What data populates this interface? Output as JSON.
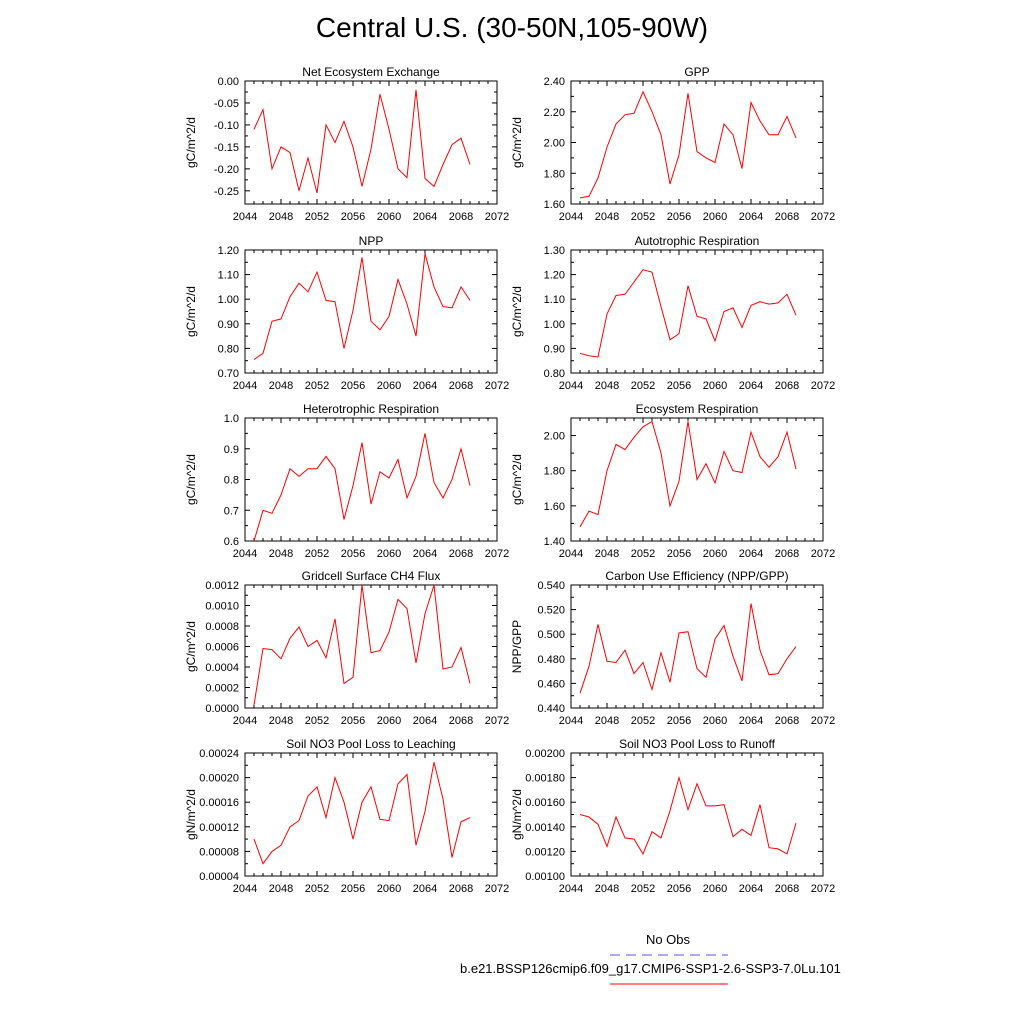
{
  "title": "Central U.S. (30-50N,105-90W)",
  "legend": {
    "obs_label": "No Obs",
    "obs_color": "#5555dd",
    "run_label": "b.e21.BSSP126cmip6.f09_g17.CMIP6-SSP1-2.6-SSP3-7.0Lu.101",
    "run_color": "#ff0000"
  },
  "chart_data": [
    {
      "type": "line",
      "title": "Net Ecosystem Exchange",
      "ylabel": "gC/m^2/d",
      "xlim": [
        2044,
        2072
      ],
      "xticks": [
        "2044",
        "2048",
        "2052",
        "2056",
        "2060",
        "2064",
        "2068",
        "2072"
      ],
      "ylim": [
        -0.28,
        0.0
      ],
      "yticks": [
        "-0.25",
        "-0.20",
        "-0.15",
        "-0.10",
        "-0.05",
        "0.00"
      ],
      "ytick_values": [
        -0.25,
        -0.2,
        -0.15,
        -0.1,
        -0.05,
        0.0
      ],
      "x": [
        2045,
        2046,
        2047,
        2048,
        2049,
        2050,
        2051,
        2052,
        2053,
        2054,
        2055,
        2056,
        2057,
        2058,
        2059,
        2060,
        2061,
        2062,
        2063,
        2064,
        2065,
        2066,
        2067,
        2068,
        2069
      ],
      "values": [
        -0.11,
        -0.065,
        -0.2,
        -0.15,
        -0.163,
        -0.25,
        -0.175,
        -0.255,
        -0.1,
        -0.14,
        -0.092,
        -0.15,
        -0.24,
        -0.155,
        -0.03,
        -0.11,
        -0.2,
        -0.22,
        -0.02,
        -0.222,
        -0.24,
        -0.19,
        -0.145,
        -0.13,
        -0.19
      ]
    },
    {
      "type": "line",
      "title": "GPP",
      "ylabel": "gC/m^2/d",
      "xlim": [
        2044,
        2072
      ],
      "xticks": [
        "2044",
        "2048",
        "2052",
        "2056",
        "2060",
        "2064",
        "2068",
        "2072"
      ],
      "ylim": [
        1.6,
        2.4
      ],
      "yticks": [
        "1.60",
        "1.80",
        "2.00",
        "2.20",
        "2.40"
      ],
      "ytick_values": [
        1.6,
        1.8,
        2.0,
        2.2,
        2.4
      ],
      "x": [
        2045,
        2046,
        2047,
        2048,
        2049,
        2050,
        2051,
        2052,
        2053,
        2054,
        2055,
        2056,
        2057,
        2058,
        2059,
        2060,
        2061,
        2062,
        2063,
        2064,
        2065,
        2066,
        2067,
        2068,
        2069
      ],
      "values": [
        1.64,
        1.65,
        1.77,
        1.97,
        2.12,
        2.18,
        2.19,
        2.33,
        2.2,
        2.05,
        1.73,
        1.92,
        2.32,
        1.94,
        1.9,
        1.87,
        2.12,
        2.05,
        1.83,
        2.26,
        2.14,
        2.05,
        2.05,
        2.17,
        2.03
      ]
    },
    {
      "type": "line",
      "title": "NPP",
      "ylabel": "gC/m^2/d",
      "xlim": [
        2044,
        2072
      ],
      "xticks": [
        "2044",
        "2048",
        "2052",
        "2056",
        "2060",
        "2064",
        "2068",
        "2072"
      ],
      "ylim": [
        0.7,
        1.2
      ],
      "yticks": [
        "0.70",
        "0.80",
        "0.90",
        "1.00",
        "1.10",
        "1.20"
      ],
      "ytick_values": [
        0.7,
        0.8,
        0.9,
        1.0,
        1.1,
        1.2
      ],
      "x": [
        2045,
        2046,
        2047,
        2048,
        2049,
        2050,
        2051,
        2052,
        2053,
        2054,
        2055,
        2056,
        2057,
        2058,
        2059,
        2060,
        2061,
        2062,
        2063,
        2064,
        2065,
        2066,
        2067,
        2068,
        2069
      ],
      "values": [
        0.755,
        0.78,
        0.91,
        0.92,
        1.01,
        1.065,
        1.03,
        1.11,
        0.995,
        0.99,
        0.8,
        0.955,
        1.17,
        0.91,
        0.875,
        0.93,
        1.08,
        0.98,
        0.85,
        1.185,
        1.05,
        0.97,
        0.965,
        1.05,
        0.995
      ]
    },
    {
      "type": "line",
      "title": "Autotrophic Respiration",
      "ylabel": "gC/m^2/d",
      "xlim": [
        2044,
        2072
      ],
      "xticks": [
        "2044",
        "2048",
        "2052",
        "2056",
        "2060",
        "2064",
        "2068",
        "2072"
      ],
      "ylim": [
        0.8,
        1.3
      ],
      "yticks": [
        "0.80",
        "0.90",
        "1.00",
        "1.10",
        "1.20",
        "1.30"
      ],
      "ytick_values": [
        0.8,
        0.9,
        1.0,
        1.1,
        1.2,
        1.3
      ],
      "x": [
        2045,
        2046,
        2047,
        2048,
        2049,
        2050,
        2051,
        2052,
        2053,
        2054,
        2055,
        2056,
        2057,
        2058,
        2059,
        2060,
        2061,
        2062,
        2063,
        2064,
        2065,
        2066,
        2067,
        2068,
        2069
      ],
      "values": [
        0.88,
        0.87,
        0.865,
        1.04,
        1.115,
        1.12,
        1.17,
        1.22,
        1.21,
        1.07,
        0.935,
        0.96,
        1.155,
        1.03,
        1.02,
        0.93,
        1.05,
        1.065,
        0.985,
        1.075,
        1.09,
        1.08,
        1.085,
        1.12,
        1.035
      ]
    },
    {
      "type": "line",
      "title": "Heterotrophic Respiration",
      "ylabel": "gC/m^2/d",
      "xlim": [
        2044,
        2072
      ],
      "xticks": [
        "2044",
        "2048",
        "2052",
        "2056",
        "2060",
        "2064",
        "2068",
        "2072"
      ],
      "ylim": [
        0.6,
        1.0
      ],
      "yticks": [
        "0.6",
        "0.7",
        "0.8",
        "0.9",
        "1.0"
      ],
      "ytick_values": [
        0.6,
        0.7,
        0.8,
        0.9,
        1.0
      ],
      "x": [
        2045,
        2046,
        2047,
        2048,
        2049,
        2050,
        2051,
        2052,
        2053,
        2054,
        2055,
        2056,
        2057,
        2058,
        2059,
        2060,
        2061,
        2062,
        2063,
        2064,
        2065,
        2066,
        2067,
        2068,
        2069
      ],
      "values": [
        0.6,
        0.7,
        0.69,
        0.75,
        0.835,
        0.81,
        0.835,
        0.835,
        0.875,
        0.835,
        0.67,
        0.78,
        0.92,
        0.72,
        0.825,
        0.805,
        0.865,
        0.74,
        0.81,
        0.95,
        0.79,
        0.74,
        0.8,
        0.9,
        0.78
      ]
    },
    {
      "type": "line",
      "title": "Ecosystem Respiration",
      "ylabel": "gC/m^2/d",
      "xlim": [
        2044,
        2072
      ],
      "xticks": [
        "2044",
        "2048",
        "2052",
        "2056",
        "2060",
        "2064",
        "2068",
        "2072"
      ],
      "ylim": [
        1.4,
        2.1
      ],
      "yticks": [
        "1.40",
        "1.60",
        "1.80",
        "2.00"
      ],
      "ytick_values": [
        1.4,
        1.6,
        1.8,
        2.0
      ],
      "x": [
        2045,
        2046,
        2047,
        2048,
        2049,
        2050,
        2051,
        2052,
        2053,
        2054,
        2055,
        2056,
        2057,
        2058,
        2059,
        2060,
        2061,
        2062,
        2063,
        2064,
        2065,
        2066,
        2067,
        2068,
        2069
      ],
      "values": [
        1.48,
        1.57,
        1.55,
        1.8,
        1.95,
        1.92,
        1.99,
        2.05,
        2.08,
        1.9,
        1.6,
        1.74,
        2.08,
        1.75,
        1.84,
        1.73,
        1.91,
        1.8,
        1.79,
        2.02,
        1.88,
        1.82,
        1.88,
        2.02,
        1.81
      ]
    },
    {
      "type": "line",
      "title": "Gridcell Surface CH4 Flux",
      "ylabel": "gC/m^2/d",
      "xlim": [
        2044,
        2072
      ],
      "xticks": [
        "2044",
        "2048",
        "2052",
        "2056",
        "2060",
        "2064",
        "2068",
        "2072"
      ],
      "ylim": [
        0.0,
        0.0012
      ],
      "yticks": [
        "0.0000",
        "0.0002",
        "0.0004",
        "0.0006",
        "0.0008",
        "0.0010",
        "0.0012"
      ],
      "ytick_values": [
        0.0,
        0.0002,
        0.0004,
        0.0006,
        0.0008,
        0.001,
        0.0012
      ],
      "x": [
        2045,
        2046,
        2047,
        2048,
        2049,
        2050,
        2051,
        2052,
        2053,
        2054,
        2055,
        2056,
        2057,
        2058,
        2059,
        2060,
        2061,
        2062,
        2063,
        2064,
        2065,
        2066,
        2067,
        2068,
        2069
      ],
      "values": [
        3e-05,
        0.00058,
        0.00057,
        0.00048,
        0.00068,
        0.00079,
        0.0006,
        0.00066,
        0.00049,
        0.00087,
        0.00024,
        0.0003,
        0.0012,
        0.00054,
        0.00056,
        0.00074,
        0.00106,
        0.00097,
        0.00044,
        0.00092,
        0.0012,
        0.00038,
        0.0004,
        0.00059,
        0.00024
      ]
    },
    {
      "type": "line",
      "title": "Carbon Use Efficiency (NPP/GPP)",
      "ylabel": "NPP/GPP",
      "xlim": [
        2044,
        2072
      ],
      "xticks": [
        "2044",
        "2048",
        "2052",
        "2056",
        "2060",
        "2064",
        "2068",
        "2072"
      ],
      "ylim": [
        0.44,
        0.54
      ],
      "yticks": [
        "0.440",
        "0.460",
        "0.480",
        "0.500",
        "0.520",
        "0.540"
      ],
      "ytick_values": [
        0.44,
        0.46,
        0.48,
        0.5,
        0.52,
        0.54
      ],
      "x": [
        2045,
        2046,
        2047,
        2048,
        2049,
        2050,
        2051,
        2052,
        2053,
        2054,
        2055,
        2056,
        2057,
        2058,
        2059,
        2060,
        2061,
        2062,
        2063,
        2064,
        2065,
        2066,
        2067,
        2068,
        2069
      ],
      "values": [
        0.452,
        0.474,
        0.508,
        0.478,
        0.477,
        0.487,
        0.468,
        0.477,
        0.455,
        0.485,
        0.461,
        0.501,
        0.502,
        0.472,
        0.465,
        0.496,
        0.507,
        0.482,
        0.462,
        0.525,
        0.487,
        0.467,
        0.468,
        0.48,
        0.49
      ]
    },
    {
      "type": "line",
      "title": "Soil NO3 Pool Loss to Leaching",
      "ylabel": "gN/m^2/d",
      "xlim": [
        2044,
        2072
      ],
      "xticks": [
        "2044",
        "2048",
        "2052",
        "2056",
        "2060",
        "2064",
        "2068",
        "2072"
      ],
      "ylim": [
        4e-05,
        0.00024
      ],
      "yticks": [
        "0.00004",
        "0.00008",
        "0.00012",
        "0.00016",
        "0.00020",
        "0.00024"
      ],
      "ytick_values": [
        4e-05,
        8e-05,
        0.00012,
        0.00016,
        0.0002,
        0.00024
      ],
      "x": [
        2045,
        2046,
        2047,
        2048,
        2049,
        2050,
        2051,
        2052,
        2053,
        2054,
        2055,
        2056,
        2057,
        2058,
        2059,
        2060,
        2061,
        2062,
        2063,
        2064,
        2065,
        2066,
        2067,
        2068,
        2069
      ],
      "values": [
        0.0001,
        6e-05,
        8e-05,
        9e-05,
        0.00012,
        0.00013,
        0.00017,
        0.000185,
        0.000135,
        0.0002,
        0.00016,
        0.0001,
        0.00016,
        0.000185,
        0.000132,
        0.00013,
        0.00019,
        0.000205,
        9e-05,
        0.000145,
        0.000225,
        0.000165,
        7e-05,
        0.000128,
        0.000135
      ]
    },
    {
      "type": "line",
      "title": "Soil NO3 Pool Loss to Runoff",
      "ylabel": "gN/m^2/d",
      "xlim": [
        2044,
        2072
      ],
      "xticks": [
        "2044",
        "2048",
        "2052",
        "2056",
        "2060",
        "2064",
        "2068",
        "2072"
      ],
      "ylim": [
        0.001,
        0.002
      ],
      "yticks": [
        "0.00100",
        "0.00120",
        "0.00140",
        "0.00160",
        "0.00180",
        "0.00200"
      ],
      "ytick_values": [
        0.001,
        0.0012,
        0.0014,
        0.0016,
        0.0018,
        0.002
      ],
      "x": [
        2045,
        2046,
        2047,
        2048,
        2049,
        2050,
        2051,
        2052,
        2053,
        2054,
        2055,
        2056,
        2057,
        2058,
        2059,
        2060,
        2061,
        2062,
        2063,
        2064,
        2065,
        2066,
        2067,
        2068,
        2069
      ],
      "values": [
        0.0015,
        0.00148,
        0.00142,
        0.00124,
        0.00148,
        0.00131,
        0.0013,
        0.00118,
        0.00136,
        0.00131,
        0.00153,
        0.0018,
        0.00154,
        0.00175,
        0.00157,
        0.00157,
        0.00158,
        0.00132,
        0.00138,
        0.00133,
        0.00158,
        0.00123,
        0.00122,
        0.00118,
        0.00143
      ]
    }
  ]
}
